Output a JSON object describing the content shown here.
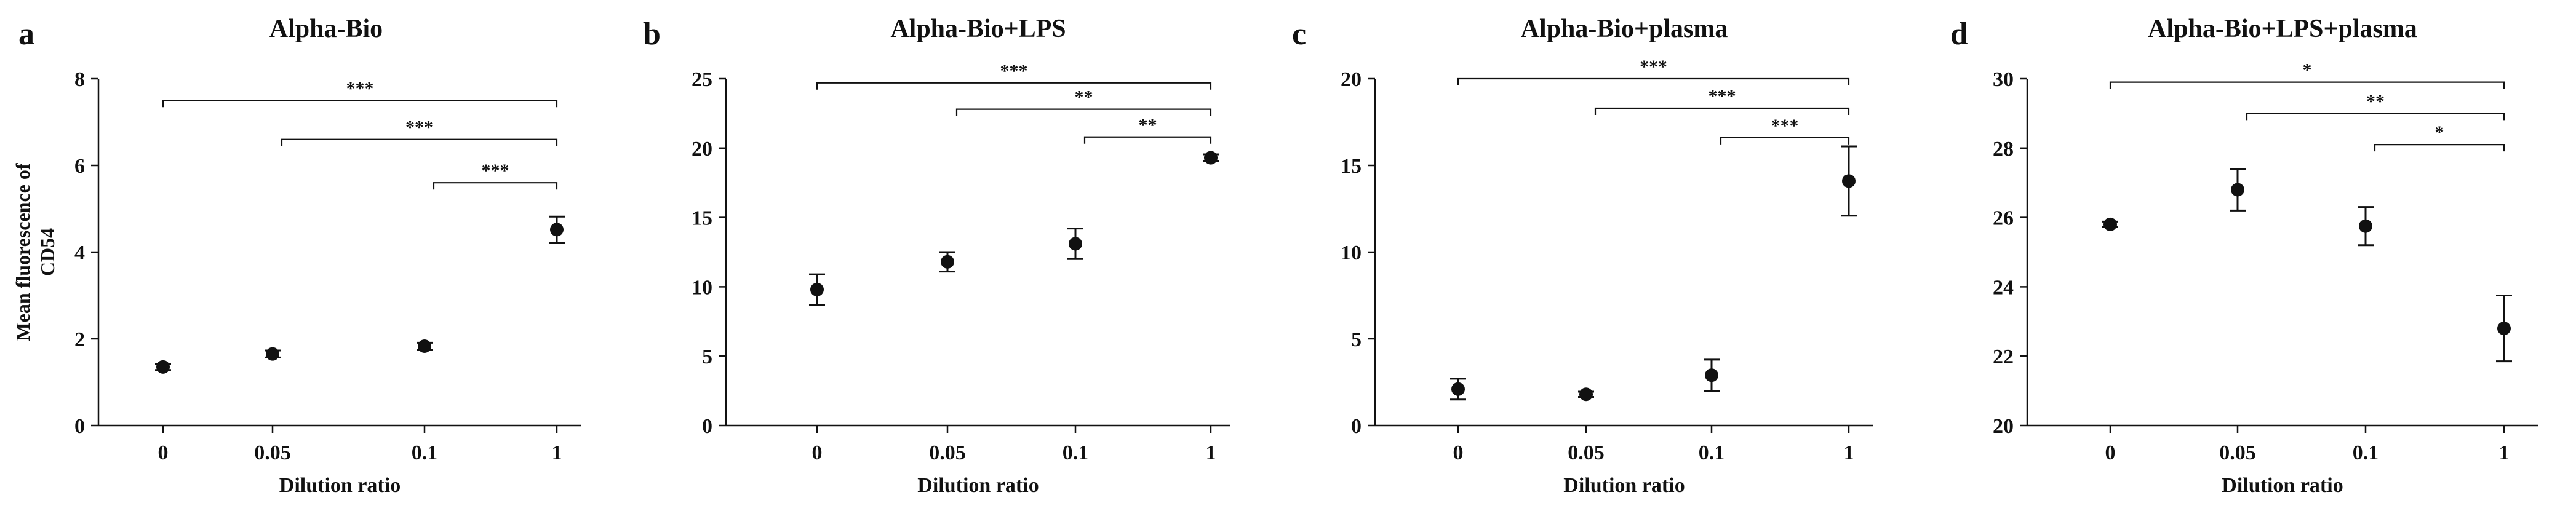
{
  "chart_data": [
    {
      "type": "scatter",
      "panel_label": "a",
      "title": "Alpha-Bio",
      "xlabel": "Dilution ratio",
      "ylabel_lines": [
        "Mean fluorescence of",
        "CD54"
      ],
      "categories": [
        "0",
        "0.05",
        "0.1",
        "1"
      ],
      "ylim": [
        0,
        8
      ],
      "yticks": [
        0,
        2,
        4,
        6,
        8
      ],
      "values": [
        1.35,
        1.65,
        1.83,
        4.52
      ],
      "errors": [
        0.07,
        0.08,
        0.08,
        0.3
      ],
      "significance": [
        {
          "from": 0,
          "to": 3,
          "label": "***",
          "y": 7.5
        },
        {
          "from": 1,
          "to": 3,
          "label": "***",
          "y": 6.6
        },
        {
          "from": 2,
          "to": 3,
          "label": "***",
          "y": 5.6
        }
      ]
    },
    {
      "type": "scatter",
      "panel_label": "b",
      "title": "Alpha-Bio+LPS",
      "xlabel": "Dilution ratio",
      "ylabel_lines": [],
      "categories": [
        "0",
        "0.05",
        "0.1",
        "1"
      ],
      "ylim": [
        0,
        25
      ],
      "yticks": [
        0,
        5,
        10,
        15,
        20,
        25
      ],
      "values": [
        9.8,
        11.8,
        13.1,
        19.3
      ],
      "errors": [
        1.1,
        0.7,
        1.1,
        0.25
      ],
      "significance": [
        {
          "from": 0,
          "to": 3,
          "label": "***",
          "y": 24.7
        },
        {
          "from": 1,
          "to": 3,
          "label": "**",
          "y": 22.8
        },
        {
          "from": 2,
          "to": 3,
          "label": "**",
          "y": 20.8
        }
      ]
    },
    {
      "type": "scatter",
      "panel_label": "c",
      "title": "Alpha-Bio+plasma",
      "xlabel": "Dilution ratio",
      "ylabel_lines": [],
      "categories": [
        "0",
        "0.05",
        "0.1",
        "1"
      ],
      "ylim": [
        0,
        20
      ],
      "yticks": [
        0,
        5,
        10,
        15,
        20
      ],
      "values": [
        2.1,
        1.8,
        2.9,
        14.1
      ],
      "errors": [
        0.6,
        0.15,
        0.9,
        2.0
      ],
      "significance": [
        {
          "from": 0,
          "to": 3,
          "label": "***",
          "y": 20.0
        },
        {
          "from": 1,
          "to": 3,
          "label": "***",
          "y": 18.3
        },
        {
          "from": 2,
          "to": 3,
          "label": "***",
          "y": 16.6
        }
      ]
    },
    {
      "type": "scatter",
      "panel_label": "d",
      "title": "Alpha-Bio+LPS+plasma",
      "xlabel": "Dilution ratio",
      "ylabel_lines": [],
      "categories": [
        "0",
        "0.05",
        "0.1",
        "1"
      ],
      "ylim": [
        20,
        30
      ],
      "yticks": [
        20,
        22,
        24,
        26,
        28,
        30
      ],
      "values": [
        25.8,
        26.8,
        25.75,
        22.8
      ],
      "errors": [
        0.08,
        0.6,
        0.55,
        0.95
      ],
      "significance": [
        {
          "from": 0,
          "to": 3,
          "label": "*",
          "y": 29.9
        },
        {
          "from": 1,
          "to": 3,
          "label": "**",
          "y": 29.0
        },
        {
          "from": 2,
          "to": 3,
          "label": "*",
          "y": 28.1
        }
      ]
    }
  ]
}
